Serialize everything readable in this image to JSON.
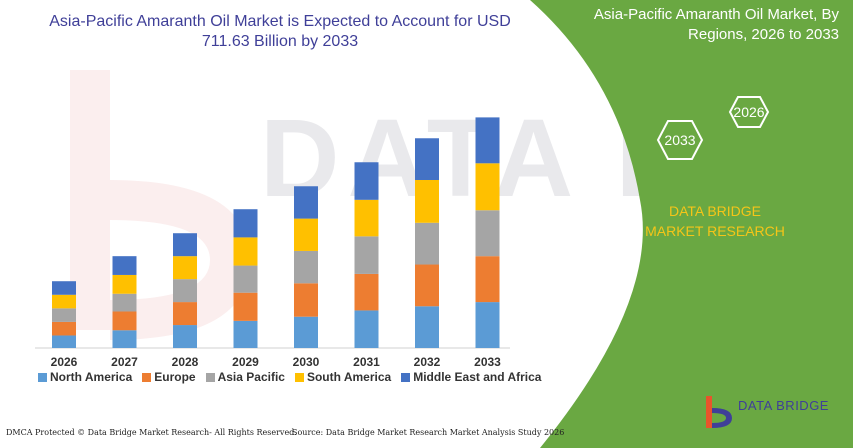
{
  "chart_data": {
    "type": "bar",
    "stacked": true,
    "title": "Asia-Pacific Amaranth Oil Market is Expected to Account for USD 711.63 Billion by 2033",
    "categories": [
      "2026",
      "2027",
      "2028",
      "2029",
      "2030",
      "2031",
      "2032",
      "2033"
    ],
    "series": [
      {
        "name": "North America",
        "color": "#5b9bd5",
        "values": [
          12,
          17,
          22,
          26,
          30,
          36,
          40,
          44
        ]
      },
      {
        "name": "Europe",
        "color": "#ed7d31",
        "values": [
          13,
          18,
          22,
          27,
          32,
          35,
          40,
          44
        ]
      },
      {
        "name": "Asia Pacific",
        "color": "#a5a5a5",
        "values": [
          13,
          17,
          22,
          26,
          31,
          36,
          40,
          44
        ]
      },
      {
        "name": "South America",
        "color": "#ffc000",
        "values": [
          13,
          18,
          22,
          27,
          31,
          35,
          41,
          45
        ]
      },
      {
        "name": "Middle East and Africa",
        "color": "#4472c4",
        "values": [
          13,
          18,
          22,
          27,
          31,
          36,
          40,
          44
        ]
      }
    ],
    "ylim": [
      0,
      230
    ],
    "grid": false,
    "legend_position": "bottom"
  },
  "panel": {
    "title": "Asia-Pacific Amaranth Oil Market, By Regions, 2026 to 2033",
    "badge_start": "2026",
    "badge_end": "2033",
    "brand": "DATA BRIDGE MARKET RESEARCH"
  },
  "footer": {
    "left": "DMCA Protected © Data Bridge Market Research- All Rights Reserved.",
    "right": "Source: Data Bridge Market Research Market Analysis Study 2026"
  },
  "logo": {
    "text": "DATA BRIDGE"
  },
  "colors": {
    "panel_green": "#6aa842",
    "title_blue": "#3f3f98",
    "brand_yellow": "#f5c518"
  }
}
